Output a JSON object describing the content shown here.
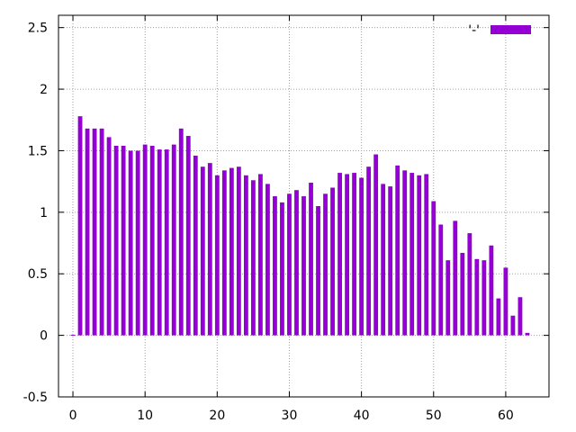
{
  "chart_data": {
    "type": "bar",
    "title": "",
    "xlabel": "",
    "ylabel": "",
    "xlim": [
      -2,
      66
    ],
    "ylim": [
      -0.5,
      2.6
    ],
    "x_ticks": [
      0,
      10,
      20,
      30,
      40,
      50,
      60
    ],
    "y_ticks": [
      -0.5,
      0,
      0.5,
      1,
      1.5,
      2,
      2.5
    ],
    "x_tick_labels": [
      "0",
      "10",
      "20",
      "30",
      "40",
      "50",
      "60"
    ],
    "y_tick_labels": [
      "-0.5",
      "0",
      "0.5",
      "1",
      "1.5",
      "2",
      "2.5"
    ],
    "grid": true,
    "legend_position": "top-right",
    "series": [
      {
        "name": "'-'",
        "color": "#9400d3",
        "x": [
          0,
          1,
          2,
          3,
          4,
          5,
          6,
          7,
          8,
          9,
          10,
          11,
          12,
          13,
          14,
          15,
          16,
          17,
          18,
          19,
          20,
          21,
          22,
          23,
          24,
          25,
          26,
          27,
          28,
          29,
          30,
          31,
          32,
          33,
          34,
          35,
          36,
          37,
          38,
          39,
          40,
          41,
          42,
          43,
          44,
          45,
          46,
          47,
          48,
          49,
          50,
          51,
          52,
          53,
          54,
          55,
          56,
          57,
          58,
          59,
          60,
          61,
          62,
          63
        ],
        "values": [
          0.005,
          1.78,
          1.68,
          1.68,
          1.68,
          1.61,
          1.54,
          1.54,
          1.5,
          1.5,
          1.55,
          1.54,
          1.51,
          1.51,
          1.55,
          1.68,
          1.62,
          1.46,
          1.37,
          1.4,
          1.3,
          1.34,
          1.36,
          1.37,
          1.3,
          1.26,
          1.31,
          1.23,
          1.13,
          1.08,
          1.15,
          1.18,
          1.13,
          1.24,
          1.05,
          1.15,
          1.2,
          1.32,
          1.31,
          1.32,
          1.28,
          1.37,
          1.47,
          1.23,
          1.21,
          1.38,
          1.34,
          1.32,
          1.3,
          1.31,
          1.09,
          0.9,
          0.61,
          0.93,
          0.67,
          0.83,
          0.62,
          0.61,
          0.73,
          0.3,
          0.55,
          0.16,
          0.31,
          0.02
        ]
      }
    ]
  }
}
